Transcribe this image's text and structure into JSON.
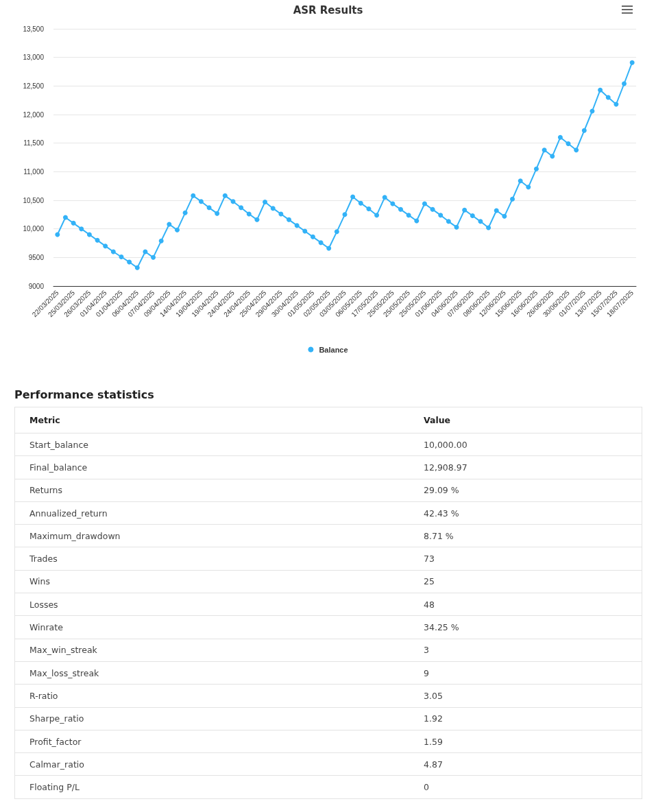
{
  "chart_data": [
    {
      "type": "line",
      "title": "ASR Results",
      "categories": [
        "22/03/2025",
        null,
        "25/03/2025",
        null,
        "26/03/2025",
        null,
        "01/04/2025",
        null,
        "01/04/2025",
        null,
        "06/04/2025",
        null,
        "07/04/2025",
        null,
        "09/04/2025",
        null,
        "14/04/2025",
        null,
        "19/04/2025",
        null,
        "19/04/2025",
        null,
        "24/04/2025",
        null,
        "24/04/2025",
        null,
        "25/04/2025",
        null,
        "29/04/2025",
        null,
        "30/04/2025",
        null,
        "01/05/2025",
        null,
        "02/05/2025",
        null,
        "03/05/2025",
        null,
        "06/05/2025",
        null,
        "17/05/2025",
        null,
        "25/05/2025",
        null,
        "25/05/2025",
        null,
        "25/05/2025",
        null,
        "01/06/2025",
        null,
        "04/06/2025",
        null,
        "07/06/2025",
        null,
        "08/06/2025",
        null,
        "12/06/2025",
        null,
        "15/06/2025",
        null,
        "16/06/2025",
        null,
        "26/06/2025",
        null,
        "30/06/2025",
        null,
        "01/07/2025",
        null,
        "13/07/2025",
        null,
        "15/07/2025",
        null,
        "18/07/2025"
      ],
      "series": [
        {
          "name": "Balance",
          "color": "#33b2f7",
          "values": [
            9900,
            10200,
            10100,
            10000,
            9900,
            9800,
            9700,
            9600,
            9510,
            9420,
            9320,
            9600,
            9500,
            9790,
            10080,
            9980,
            10280,
            10580,
            10480,
            10370,
            10270,
            10580,
            10480,
            10370,
            10260,
            10160,
            10470,
            10360,
            10260,
            10160,
            10060,
            9960,
            9860,
            9760,
            9660,
            9950,
            10250,
            10560,
            10450,
            10350,
            10240,
            10550,
            10440,
            10340,
            10240,
            10140,
            10440,
            10340,
            10240,
            10130,
            10030,
            10330,
            10230,
            10130,
            10020,
            10320,
            10220,
            10520,
            10840,
            10730,
            11050,
            11380,
            11270,
            11600,
            11490,
            11380,
            11720,
            12060,
            12430,
            12300,
            12180,
            12540,
            12910
          ]
        }
      ],
      "ylim": [
        9000,
        13500
      ],
      "yticks": [
        9000,
        9500,
        {
          "value": 10000,
          "label": "10,000"
        },
        {
          "value": 10500,
          "label": "10,500"
        },
        {
          "value": 11000,
          "label": "11,000"
        },
        {
          "value": 11500,
          "label": "11,500"
        },
        {
          "value": 12000,
          "label": "12,000"
        },
        {
          "value": 12500,
          "label": "12,500"
        },
        {
          "value": 13000,
          "label": "13,000"
        },
        {
          "value": 13500,
          "label": "13,500"
        }
      ],
      "grid": "y",
      "legend": "bottom",
      "marker": "circle",
      "line_style": "solid"
    },
    {
      "type": "other",
      "title": "Performance statistics",
      "xlabel": "Metric",
      "ylabel": "Value",
      "categories": [
        "Start_balance",
        "Final_balance",
        "Returns",
        "Annualized_return",
        "Maximum_drawdown",
        "Trades",
        "Wins",
        "Losses",
        "Winrate",
        "Max_win_streak",
        "Max_loss_streak",
        "R-ratio",
        "Sharpe_ratio",
        "Profit_factor",
        "Calmar_ratio",
        "Floating P/L"
      ],
      "value_labels": [
        "10,000.00",
        "12,908.97",
        "29.09 %",
        "42.43 %",
        "8.71 %",
        "73",
        "25",
        "48",
        "34.25 %",
        "3",
        "9",
        "3.05",
        "1.92",
        "1.59",
        "4.87",
        "0"
      ]
    }
  ]
}
